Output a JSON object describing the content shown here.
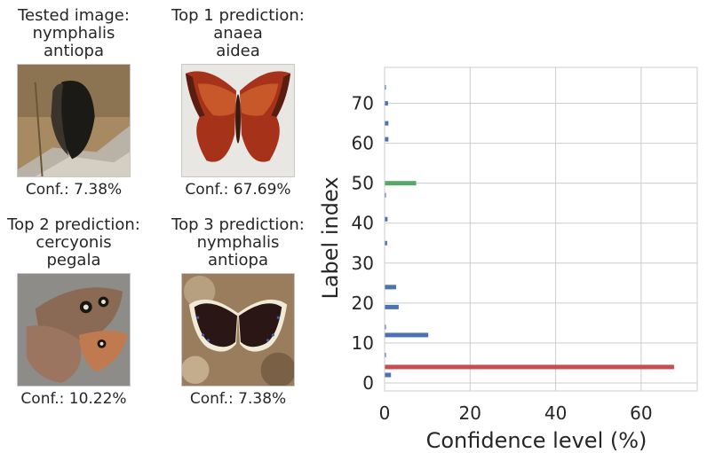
{
  "panels": [
    {
      "title_lines": [
        "Tested image:",
        "nymphalis",
        "antiopa"
      ],
      "conf_label": "Conf.: 7.38%",
      "image": "dark-butterfly-on-wood-photo"
    },
    {
      "title_lines": [
        "Top 1 prediction:",
        "anaea",
        "aidea"
      ],
      "conf_label": "Conf.: 67.69%",
      "image": "orange-butterfly-photo"
    },
    {
      "title_lines": [
        "Top 2 prediction:",
        "cercyonis",
        "pegala"
      ],
      "conf_label": "Conf.: 10.22%",
      "image": "brown-eyespot-butterfly-photo"
    },
    {
      "title_lines": [
        "Top 3 prediction:",
        "nymphalis",
        "antiopa"
      ],
      "conf_label": "Conf.: 7.38%",
      "image": "mourning-cloak-butterfly-photo"
    }
  ],
  "chart_data": {
    "type": "bar",
    "orientation": "horizontal",
    "xlabel": "Confidence level (%)",
    "ylabel": "Label index",
    "xlim": [
      0,
      70
    ],
    "ylim": [
      -2,
      79
    ],
    "xticks": [
      0,
      20,
      40,
      60
    ],
    "yticks": [
      0,
      10,
      20,
      30,
      40,
      50,
      60,
      70
    ],
    "grid": true,
    "colors": {
      "default": "#4c72b0",
      "top1": "#c44e52",
      "tested": "#55a868"
    },
    "bars": [
      {
        "index": 2,
        "value": 1.5,
        "color": "#4c72b0"
      },
      {
        "index": 4,
        "value": 67.69,
        "color": "#c44e52"
      },
      {
        "index": 7,
        "value": 0.3,
        "color": "#4c72b0"
      },
      {
        "index": 12,
        "value": 10.22,
        "color": "#4c72b0"
      },
      {
        "index": 14,
        "value": 0.2,
        "color": "#4c72b0"
      },
      {
        "index": 19,
        "value": 3.3,
        "color": "#4c72b0"
      },
      {
        "index": 24,
        "value": 2.7,
        "color": "#4c72b0"
      },
      {
        "index": 35,
        "value": 0.6,
        "color": "#4c72b0"
      },
      {
        "index": 41,
        "value": 0.7,
        "color": "#4c72b0"
      },
      {
        "index": 47,
        "value": 0.3,
        "color": "#4c72b0"
      },
      {
        "index": 50,
        "value": 7.38,
        "color": "#55a868"
      },
      {
        "index": 61,
        "value": 0.9,
        "color": "#4c72b0"
      },
      {
        "index": 65,
        "value": 0.9,
        "color": "#4c72b0"
      },
      {
        "index": 70,
        "value": 0.8,
        "color": "#4c72b0"
      },
      {
        "index": 74,
        "value": 0.3,
        "color": "#4c72b0"
      }
    ]
  }
}
